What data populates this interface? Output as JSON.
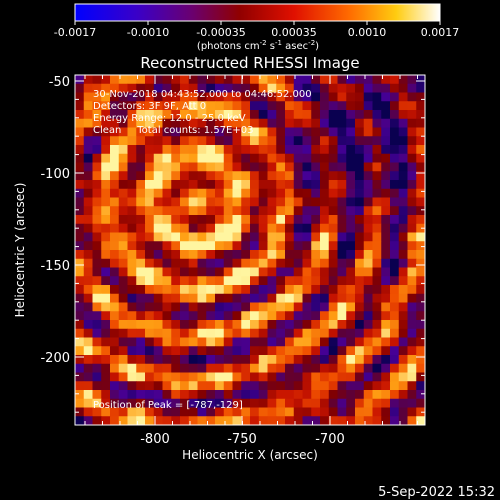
{
  "colorbar": {
    "ticks": [
      "-0.0017",
      "-0.0010",
      "-0.00035",
      "0.00035",
      "0.0010",
      "0.0017"
    ],
    "units": "(photons cm",
    "units_exp1": "-2",
    "units_mid": " s",
    "units_exp2": "-1",
    "units_end": " asec",
    "units_exp3": "-2",
    "units_close": ")"
  },
  "plot": {
    "title": "Reconstructed RHESSI Image",
    "xlabel": "Heliocentric X (arcsec)",
    "ylabel": "Heliocentric Y (arcsec)",
    "xticks": [
      "-800",
      "-750",
      "-700"
    ],
    "yticks": [
      "-50",
      "-100",
      "-150",
      "-200"
    ],
    "info": [
      "30-Nov-2018 04:43:52.000 to 04:46:52.000",
      "Detectors: 3F 9F, Att 0",
      "Energy Range: 12.0 - 25.0 keV",
      "Clean     Total counts: 1.57E+03"
    ],
    "peak": "Position of Peak = [-787,-129]"
  },
  "footer": {
    "date": "5-Sep-2022 15:32"
  }
}
